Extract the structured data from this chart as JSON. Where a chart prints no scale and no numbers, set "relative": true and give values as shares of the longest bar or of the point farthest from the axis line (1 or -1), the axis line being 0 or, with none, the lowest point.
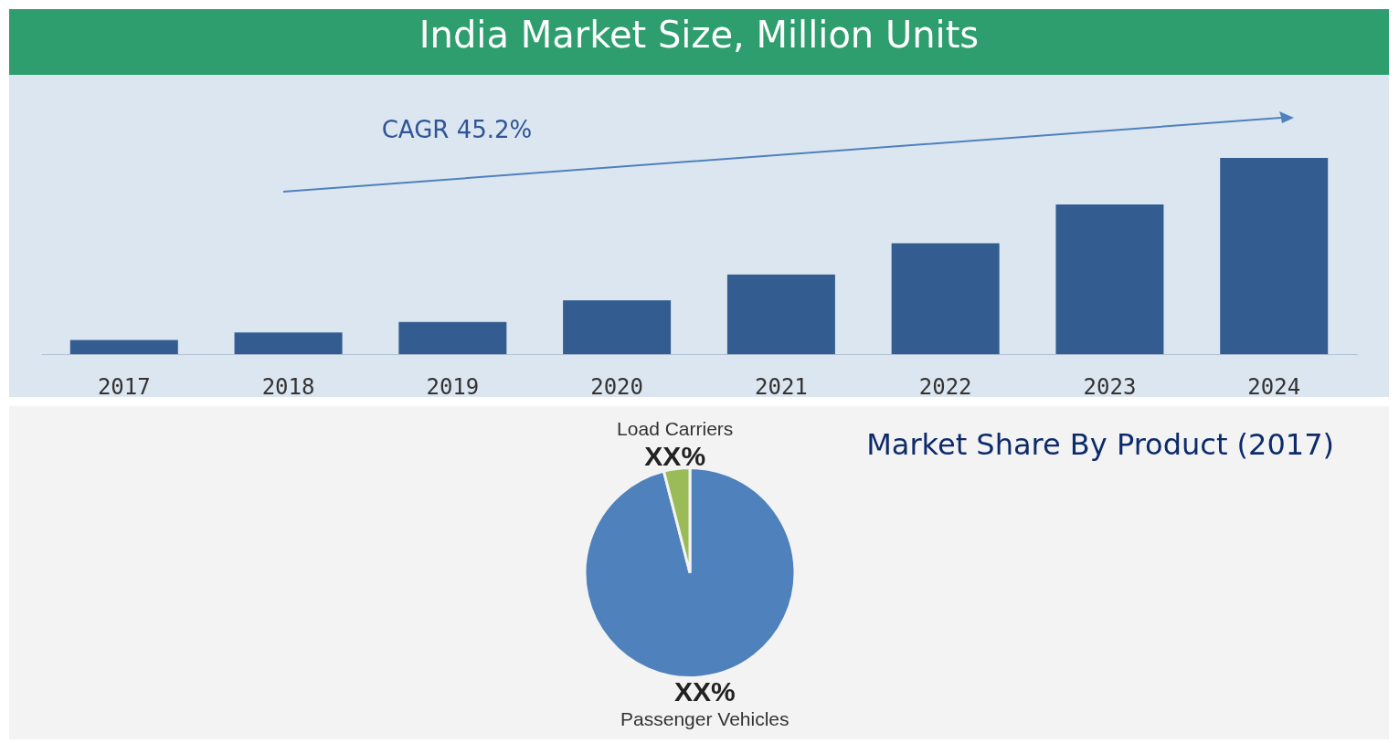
{
  "chart_data": [
    {
      "type": "bar",
      "title": "India Market Size, Million Units",
      "categories": [
        "2017",
        "2018",
        "2019",
        "2020",
        "2021",
        "2022",
        "2023",
        "2024"
      ],
      "values": [
        0.072,
        0.111,
        0.164,
        0.275,
        0.406,
        0.565,
        0.763,
        1
      ],
      "color": "#335d91",
      "relative": true,
      "annotations": [
        "CAGR 45.2%"
      ]
    },
    {
      "type": "pie",
      "title": "Market Share By Product (2017)",
      "categories": [
        "Passenger Vehicles",
        "Load Carriers"
      ],
      "values": [
        96,
        4
      ],
      "colors": [
        "#4f81bd",
        "#9bbb59"
      ],
      "value_labels": [
        "XX%",
        "XX%"
      ]
    }
  ]
}
